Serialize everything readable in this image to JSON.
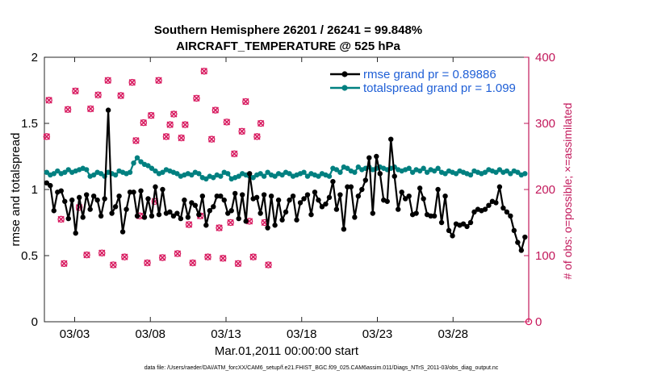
{
  "chart_data": {
    "type": "line",
    "title": "Southern Hemisphere 26201 / 26241 = 99.848%",
    "subtitle": "AIRCRAFT_TEMPERATURE @ 525 hPa",
    "xlabel": "Mar.01,2011 00:00:00 start",
    "ylabel": "rmse and totalspread",
    "y2label": "# of obs: o=possible; ×=assimilated",
    "footer": "data file: /Users/raeder/DAI/ATM_forcXX/CAM6_setup/f.e21.FHIST_BGC.f09_025.CAM6assim.011/Diags_NTrS_2011-03/obs_diag_output.nc",
    "xlim": [
      1,
      33
    ],
    "ylim": [
      0,
      2
    ],
    "y2lim": [
      0,
      400
    ],
    "x_ticks": [
      3,
      8,
      13,
      18,
      23,
      28
    ],
    "x_tick_labels": [
      "03/03",
      "03/08",
      "03/13",
      "03/18",
      "03/23",
      "03/28"
    ],
    "y_ticks": [
      0,
      0.5,
      1,
      1.5,
      2
    ],
    "y_tick_labels": [
      "0",
      "0.5",
      "1",
      "1.5",
      "2"
    ],
    "y2_ticks": [
      0,
      100,
      200,
      300,
      400
    ],
    "y2_tick_labels": [
      "0",
      "100",
      "200",
      "300",
      "400"
    ],
    "colors": {
      "rmse": "#000000",
      "spread": "#008080",
      "obs": "#d81b60"
    },
    "series": [
      {
        "name": "rmse",
        "legend": "rmse grand pr = 0.89886",
        "values": [
          1.05,
          1.03,
          0.84,
          0.98,
          0.99,
          0.91,
          0.78,
          0.92,
          0.67,
          0.94,
          0.79,
          0.96,
          0.85,
          0.95,
          0.92,
          0.8,
          0.93,
          1.6,
          0.82,
          0.87,
          0.95,
          0.68,
          0.85,
          0.98,
          0.98,
          0.8,
          0.99,
          0.79,
          0.93,
          0.8,
          1.02,
          0.81,
          1.0,
          0.82,
          0.83,
          0.8,
          0.82,
          0.78,
          0.92,
          0.79,
          0.9,
          0.88,
          0.81,
          0.95,
          0.73,
          0.84,
          0.87,
          0.95,
          0.95,
          0.92,
          0.82,
          0.84,
          0.97,
          0.78,
          0.96,
          0.76,
          1.12,
          0.93,
          0.94,
          0.82,
          0.96,
          0.71,
          0.95,
          0.73,
          0.92,
          0.77,
          0.83,
          0.92,
          0.95,
          0.77,
          0.9,
          0.93,
          0.96,
          0.81,
          0.98,
          0.92,
          0.87,
          0.89,
          0.94,
          1.06,
          0.85,
          0.96,
          0.7,
          1.02,
          1.02,
          0.79,
          0.95,
          1.0,
          1.07,
          1.24,
          0.82,
          1.25,
          1.12,
          0.92,
          0.91,
          1.38,
          1.1,
          0.85,
          0.98,
          0.93,
          0.95,
          0.81,
          0.82,
          1.01,
          0.93,
          0.81,
          0.8,
          0.8,
          1.0,
          0.75,
          0.95,
          0.69,
          0.65,
          0.74,
          0.73,
          0.74,
          0.72,
          0.75,
          0.83,
          0.85,
          0.84,
          0.85,
          0.88,
          0.91,
          0.9,
          1.02,
          0.86,
          0.83,
          0.8,
          0.69,
          0.6,
          0.54,
          0.64
        ],
        "marker": "o"
      },
      {
        "name": "totalspread",
        "legend": "totalspread grand pr = 1.099",
        "values": [
          1.13,
          1.11,
          1.12,
          1.14,
          1.12,
          1.13,
          1.15,
          1.13,
          1.14,
          1.15,
          1.16,
          1.15,
          1.1,
          1.11,
          1.13,
          1.12,
          1.1,
          1.13,
          1.12,
          1.11,
          1.14,
          1.13,
          1.12,
          1.13,
          1.2,
          1.24,
          1.21,
          1.19,
          1.18,
          1.16,
          1.14,
          1.12,
          1.13,
          1.15,
          1.14,
          1.13,
          1.12,
          1.1,
          1.11,
          1.12,
          1.11,
          1.13,
          1.12,
          1.09,
          1.08,
          1.1,
          1.09,
          1.11,
          1.1,
          1.13,
          1.12,
          1.08,
          1.09,
          1.1,
          1.12,
          1.11,
          1.1,
          1.09,
          1.11,
          1.12,
          1.1,
          1.13,
          1.11,
          1.1,
          1.12,
          1.11,
          1.13,
          1.12,
          1.1,
          1.11,
          1.12,
          1.13,
          1.1,
          1.12,
          1.11,
          1.1,
          1.12,
          1.11,
          1.1,
          1.16,
          1.15,
          1.13,
          1.17,
          1.16,
          1.14,
          1.13,
          1.17,
          1.15,
          1.16,
          1.17,
          1.15,
          1.16,
          1.17,
          1.16,
          1.15,
          1.16,
          1.17,
          1.15,
          1.14,
          1.15,
          1.16,
          1.13,
          1.15,
          1.14,
          1.16,
          1.13,
          1.15,
          1.14,
          1.16,
          1.13,
          1.12,
          1.14,
          1.13,
          1.12,
          1.14,
          1.13,
          1.12,
          1.11,
          1.14,
          1.13,
          1.12,
          1.13,
          1.15,
          1.14,
          1.13,
          1.15,
          1.13,
          1.14,
          1.12,
          1.14,
          1.13,
          1.11,
          1.12
        ],
        "marker": "o"
      }
    ],
    "obs_possible": [
      [
        1.15,
        280
      ],
      [
        1.3,
        335
      ],
      [
        2.1,
        155
      ],
      [
        2.3,
        88
      ],
      [
        2.55,
        321
      ],
      [
        3.05,
        349
      ],
      [
        3.3,
        173
      ],
      [
        3.8,
        101
      ],
      [
        4.05,
        322
      ],
      [
        4.55,
        343
      ],
      [
        4.8,
        104
      ],
      [
        5.2,
        365
      ],
      [
        5.55,
        86
      ],
      [
        6.05,
        342
      ],
      [
        6.3,
        98
      ],
      [
        6.8,
        362
      ],
      [
        7.05,
        274
      ],
      [
        7.3,
        160
      ],
      [
        7.55,
        301
      ],
      [
        7.8,
        89
      ],
      [
        8.05,
        312
      ],
      [
        8.3,
        182
      ],
      [
        8.55,
        365
      ],
      [
        8.8,
        97
      ],
      [
        9.05,
        280
      ],
      [
        9.3,
        298
      ],
      [
        9.55,
        314
      ],
      [
        9.8,
        103
      ],
      [
        10.05,
        278
      ],
      [
        10.3,
        298
      ],
      [
        10.55,
        147
      ],
      [
        10.8,
        89
      ],
      [
        11.05,
        338
      ],
      [
        11.3,
        160
      ],
      [
        11.55,
        379
      ],
      [
        11.8,
        98
      ],
      [
        12.05,
        276
      ],
      [
        12.3,
        320
      ],
      [
        12.55,
        142
      ],
      [
        12.8,
        96
      ],
      [
        13.05,
        302
      ],
      [
        13.3,
        150
      ],
      [
        13.55,
        254
      ],
      [
        13.8,
        88
      ],
      [
        14.05,
        288
      ],
      [
        14.3,
        333
      ],
      [
        14.55,
        152
      ],
      [
        14.8,
        98
      ],
      [
        15.05,
        280
      ],
      [
        15.3,
        300
      ],
      [
        15.55,
        150
      ],
      [
        15.8,
        86
      ]
    ]
  },
  "legend": {
    "rmse_label": "rmse grand pr = 0.89886",
    "spread_label": "totalspread grand pr = 1.099"
  }
}
